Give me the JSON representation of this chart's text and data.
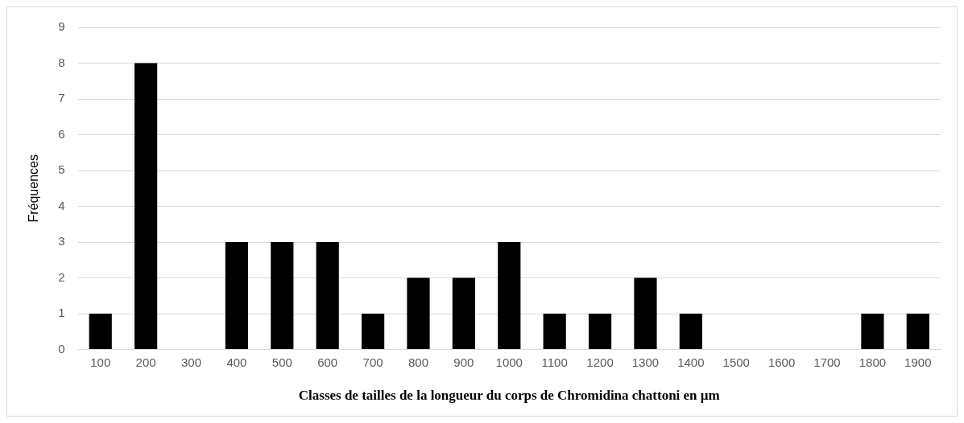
{
  "chart_data": {
    "type": "bar",
    "xlabel": "Classes de tailles de la longueur du corps de Chromidina chattoni en µm",
    "ylabel": "Fréquences",
    "categories": [
      "100",
      "200",
      "300",
      "400",
      "500",
      "600",
      "700",
      "800",
      "900",
      "1000",
      "1100",
      "1200",
      "1300",
      "1400",
      "1500",
      "1600",
      "1700",
      "1800",
      "1900"
    ],
    "values": [
      1,
      8,
      0,
      3,
      3,
      3,
      1,
      2,
      2,
      3,
      1,
      1,
      2,
      1,
      0,
      0,
      0,
      1,
      1
    ],
    "color": "#000000",
    "ylim": [
      0,
      9
    ],
    "yticks": [
      0,
      1,
      2,
      3,
      4,
      5,
      6,
      7,
      8,
      9
    ],
    "grid": "y",
    "legend": false
  }
}
